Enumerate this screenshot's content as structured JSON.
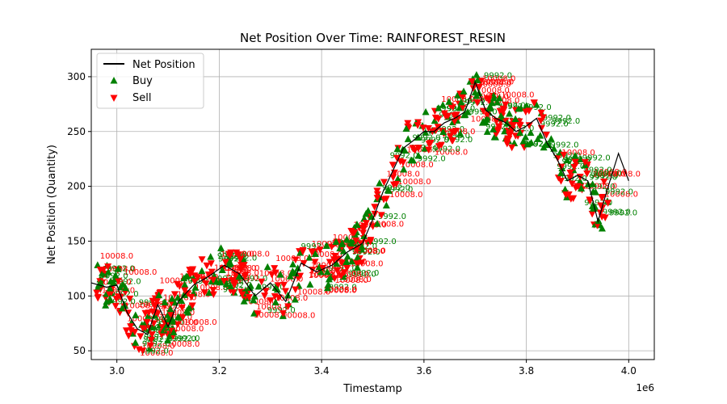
{
  "chart_data": {
    "type": "line",
    "title": "Net Position Over Time: RAINFOREST_RESIN",
    "xlabel": "Timestamp",
    "ylabel": "Net Position (Quantity)",
    "x_offset_label": "1e6",
    "xlim": [
      2.95,
      4.05
    ],
    "ylim": [
      42,
      325
    ],
    "x_ticks": [
      "3.0",
      "3.2",
      "3.4",
      "3.6",
      "3.8",
      "4.0"
    ],
    "y_ticks": [
      "50",
      "100",
      "150",
      "200",
      "250",
      "300"
    ],
    "grid": true,
    "legend": {
      "placement": "top-left",
      "entries": [
        "Net Position",
        "Buy",
        "Sell"
      ]
    },
    "colors": {
      "line": "#000000",
      "buy": "#008000",
      "sell": "#ff0000",
      "grid": "#b0b0b0"
    },
    "series": [
      {
        "name": "Net Position",
        "x": [
          2.95,
          2.98,
          3.0,
          3.02,
          3.04,
          3.06,
          3.08,
          3.1,
          3.12,
          3.15,
          3.18,
          3.21,
          3.24,
          3.27,
          3.3,
          3.33,
          3.36,
          3.39,
          3.42,
          3.45,
          3.48,
          3.5,
          3.52,
          3.54,
          3.56,
          3.58,
          3.6,
          3.62,
          3.64,
          3.66,
          3.68,
          3.7,
          3.72,
          3.74,
          3.76,
          3.78,
          3.8,
          3.82,
          3.84,
          3.86,
          3.88,
          3.9,
          3.92,
          3.94,
          3.96,
          3.98,
          4.0
        ],
        "y": [
          112,
          108,
          110,
          85,
          70,
          65,
          92,
          72,
          95,
          110,
          118,
          128,
          120,
          100,
          112,
          95,
          130,
          122,
          128,
          140,
          148,
          170,
          195,
          215,
          235,
          242,
          250,
          250,
          258,
          262,
          268,
          295,
          270,
          262,
          258,
          250,
          255,
          262,
          240,
          225,
          205,
          210,
          205,
          168,
          200,
          230,
          205
        ]
      }
    ],
    "buy_labels": [
      "9992.0",
      "9992.0",
      "9992.0",
      "9992.0",
      "9992.0",
      "9992.0",
      "9992.0",
      "9992.0",
      "9992.0",
      "9992.0"
    ],
    "sell_labels": [
      "10008.0",
      "10008.0",
      "10008.0",
      "10008.0",
      "10008.0",
      "10008.0",
      "10008.0",
      "10008.0",
      "10008.0",
      "10008.0",
      "10008.0",
      "10008.0"
    ]
  }
}
